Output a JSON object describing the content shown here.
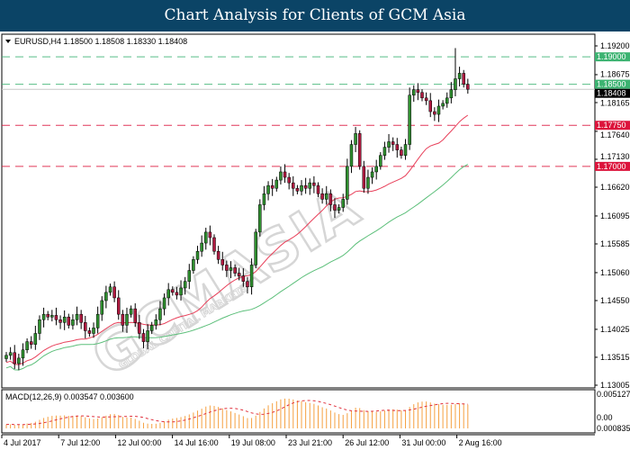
{
  "title": "Chart Analysis for Clients of GCM Asia",
  "watermark": {
    "main": "GCMASIA",
    "sub": "GLOBAL CAPITAL MARKETS"
  },
  "colors": {
    "title_bg": "#0b4466",
    "bull": "#2f8f2f",
    "bear": "#b01a40",
    "ma_fast": "#e8405a",
    "ma_slow": "#5cbf7a",
    "resistance": "#3cb371",
    "support": "#dc143c",
    "macd_hist": "#f5a040",
    "macd_signal": "#e0303c"
  },
  "chart_data": {
    "type": "candlestick",
    "symbol_header": "EURUSD,H4  1.18500 1.18508 1.18330 1.18408",
    "ylim": [
      1.13005,
      1.192
    ],
    "y_ticks": [
      "1.19200",
      "1.18675",
      "1.18165",
      "1.17640",
      "1.17130",
      "1.16620",
      "1.16095",
      "1.15585",
      "1.15060",
      "1.14550",
      "1.14025",
      "1.13515",
      "1.13005"
    ],
    "x_ticks": [
      "4 Jul 2017",
      "7 Jul 12:00",
      "12 Jul 00:00",
      "14 Jul 16:00",
      "19 Jul 08:00",
      "23 Jul 21:00",
      "26 Jul 12:00",
      "31 Jul 00:00",
      "2 Aug 16:00"
    ],
    "closes": [
      1.1355,
      1.136,
      1.134,
      1.135,
      1.1365,
      1.138,
      1.1375,
      1.1395,
      1.142,
      1.143,
      1.1425,
      1.1428,
      1.142,
      1.1415,
      1.1425,
      1.141,
      1.142,
      1.143,
      1.1415,
      1.14,
      1.1395,
      1.1405,
      1.143,
      1.1455,
      1.147,
      1.148,
      1.146,
      1.143,
      1.141,
      1.143,
      1.144,
      1.1415,
      1.1395,
      1.138,
      1.14,
      1.141,
      1.142,
      1.144,
      1.146,
      1.1475,
      1.147,
      1.1465,
      1.1478,
      1.149,
      1.151,
      1.153,
      1.1545,
      1.156,
      1.158,
      1.157,
      1.1545,
      1.153,
      1.152,
      1.151,
      1.1515,
      1.1505,
      1.15,
      1.149,
      1.148,
      1.152,
      1.158,
      1.163,
      1.165,
      1.1665,
      1.166,
      1.1675,
      1.169,
      1.168,
      1.167,
      1.166,
      1.1655,
      1.1665,
      1.166,
      1.167,
      1.1665,
      1.165,
      1.164,
      1.165,
      1.163,
      1.162,
      1.1625,
      1.164,
      1.17,
      1.174,
      1.176,
      1.17,
      1.166,
      1.168,
      1.169,
      1.17,
      1.172,
      1.1735,
      1.1745,
      1.174,
      1.173,
      1.172,
      1.174,
      1.183,
      1.184,
      1.1835,
      1.1825,
      1.182,
      1.18,
      1.1795,
      1.181,
      1.1815,
      1.1825,
      1.184,
      1.186,
      1.187,
      1.185,
      1.18408
    ],
    "high_overrides": {
      "108": 1.1916
    },
    "levels": [
      {
        "label": "1.19000",
        "value": 1.19,
        "kind": "resistance"
      },
      {
        "label": "1.18500",
        "value": 1.185,
        "kind": "resistance"
      },
      {
        "label": "1.17750",
        "value": 1.1775,
        "kind": "support"
      },
      {
        "label": "1.17000",
        "value": 1.17,
        "kind": "support"
      }
    ],
    "current_price": {
      "label": "1.18408",
      "value": 1.18408
    },
    "macd": {
      "label": "MACD(12,26,9) 0.003547 0.003600",
      "y_ticks": [
        "0.005127",
        "0.00",
        "0.000835"
      ],
      "ylim": [
        0,
        0.005127
      ]
    }
  }
}
